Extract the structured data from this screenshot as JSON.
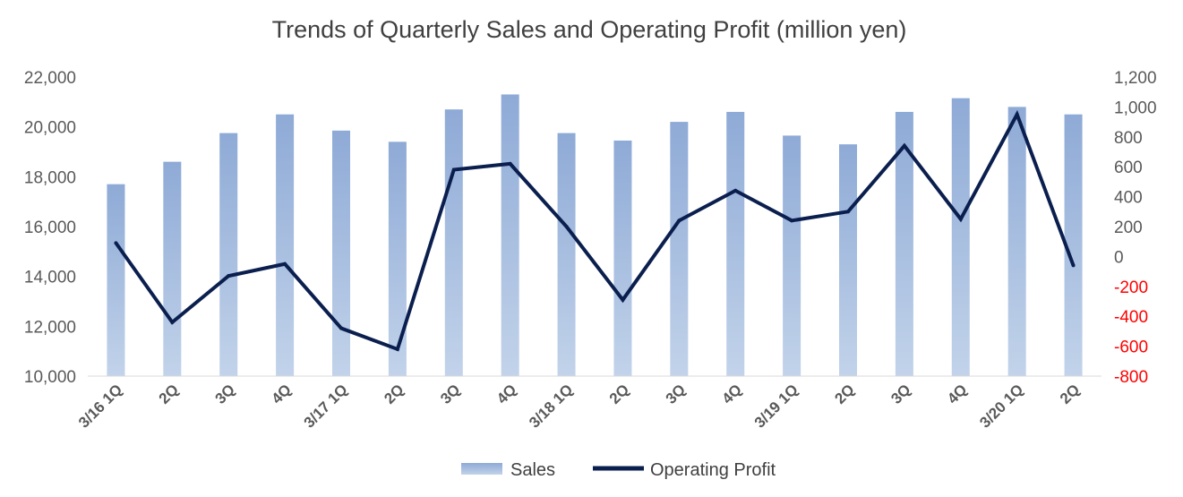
{
  "chart_data": {
    "type": "bar",
    "title": "Trends of Quarterly Sales and Operating Profit (million yen)",
    "categories": [
      "3/16 1Q",
      "2Q",
      "3Q",
      "4Q",
      "3/17 1Q",
      "2Q",
      "3Q",
      "4Q",
      "3/18 1Q",
      "2Q",
      "3Q",
      "4Q",
      "3/19 1Q",
      "2Q",
      "3Q",
      "4Q",
      "3/20 1Q",
      "2Q"
    ],
    "series": [
      {
        "name": "Sales",
        "type": "bar",
        "axis": "left",
        "color": "#a4bedf",
        "values": [
          17700,
          18600,
          19750,
          20500,
          19850,
          19400,
          20700,
          21300,
          19750,
          19450,
          20200,
          20600,
          19650,
          19300,
          20600,
          21150,
          20800,
          20500
        ]
      },
      {
        "name": "Operating Profit",
        "type": "line",
        "axis": "right",
        "color": "#0b1f4f",
        "values": [
          90,
          -440,
          -130,
          -50,
          -480,
          -620,
          580,
          620,
          200,
          -290,
          240,
          440,
          240,
          300,
          740,
          250,
          950,
          -60
        ]
      }
    ],
    "y_left": {
      "min": 10000,
      "max": 22000,
      "step": 2000,
      "tick_labels": [
        "10,000",
        "12,000",
        "14,000",
        "16,000",
        "18,000",
        "20,000",
        "22,000"
      ]
    },
    "y_right": {
      "min": -800,
      "max": 1200,
      "step": 200,
      "tick_labels": [
        "-800",
        "-600",
        "-400",
        "-200",
        "0",
        "200",
        "400",
        "600",
        "800",
        "1,000",
        "1,200"
      ],
      "negative_color": "#ff0000"
    },
    "grid": false,
    "legend_position": "bottom"
  }
}
